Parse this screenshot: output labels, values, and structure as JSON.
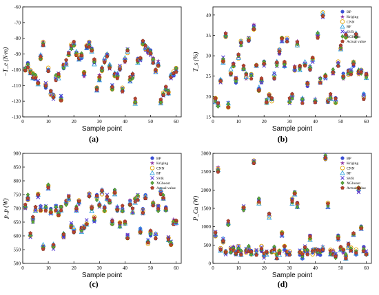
{
  "markers": [
    {
      "name": "BP",
      "shape": "circle",
      "color": "#3b4fd4"
    },
    {
      "name": "Kriging",
      "shape": "star",
      "color": "#8b2fa0"
    },
    {
      "name": "CNN",
      "shape": "circle-open",
      "color": "#e0a100"
    },
    {
      "name": "RF",
      "shape": "triangle-open",
      "color": "#3ba7e0"
    },
    {
      "name": "SVR",
      "shape": "x",
      "color": "#5a3fd6"
    },
    {
      "name": "XGboost",
      "shape": "diamond",
      "color": "#5aa63a"
    },
    {
      "name": "Actual value",
      "shape": "pentagon",
      "color": "#b5432f"
    }
  ],
  "chart_data": [
    {
      "type": "scatter",
      "panel": "(a)",
      "xlabel": "Sample point",
      "ylabel": "−T_e (N·m)",
      "xlim": [
        0,
        62
      ],
      "ylim": [
        -130,
        -60
      ],
      "xticks": [
        0,
        10,
        20,
        30,
        40,
        50,
        60
      ],
      "yticks": [
        -130,
        -120,
        -110,
        -100,
        -90,
        -80,
        -70,
        -60
      ],
      "legend": "none",
      "x": [
        1,
        2,
        3,
        4,
        5,
        6,
        7,
        8,
        9,
        10,
        11,
        12,
        13,
        14,
        15,
        16,
        17,
        18,
        19,
        20,
        21,
        22,
        23,
        24,
        25,
        26,
        27,
        28,
        29,
        30,
        31,
        32,
        33,
        34,
        35,
        36,
        37,
        38,
        39,
        40,
        41,
        42,
        43,
        44,
        45,
        46,
        47,
        48,
        49,
        50,
        51,
        52,
        53,
        54,
        55,
        56,
        57,
        58,
        59,
        60
      ],
      "values": [
        -99,
        -97,
        -101,
        -104,
        -105,
        -108,
        -92,
        -83,
        -110,
        -100,
        -115,
        -117,
        -105,
        -104,
        -118,
        -98,
        -95,
        -89,
        -85,
        -83,
        -90,
        -92,
        -91,
        -103,
        -86,
        -84,
        -88,
        -95,
        -112,
        -105,
        -100,
        -94,
        -90,
        -98,
        -111,
        -103,
        -104,
        -99,
        -113,
        -94,
        -88,
        -106,
        -104,
        -120,
        -94,
        -93,
        -82,
        -86,
        -88,
        -89,
        -94,
        -100,
        -96,
        -120,
        -116,
        -112,
        -114,
        -104,
        -102,
        -100
      ],
      "series_names": [
        "BP",
        "Kriging",
        "CNN",
        "RF",
        "SVR",
        "XGboost",
        "Actual value"
      ]
    },
    {
      "type": "scatter",
      "panel": "(b)",
      "xlabel": "Sample point",
      "ylabel": "T_s (%)",
      "xlim": [
        0,
        62
      ],
      "ylim": [
        15,
        42
      ],
      "xticks": [
        0,
        10,
        20,
        30,
        40,
        50,
        60
      ],
      "yticks": [
        15,
        20,
        25,
        30,
        35,
        40
      ],
      "legend": "top-right",
      "x": [
        1,
        2,
        3,
        4,
        5,
        6,
        7,
        8,
        9,
        10,
        11,
        12,
        13,
        14,
        15,
        16,
        17,
        18,
        19,
        20,
        21,
        22,
        23,
        24,
        25,
        26,
        27,
        28,
        29,
        30,
        31,
        32,
        33,
        34,
        35,
        36,
        37,
        38,
        39,
        40,
        41,
        42,
        43,
        44,
        45,
        46,
        47,
        48,
        49,
        50,
        51,
        52,
        53,
        54,
        55,
        56,
        57,
        58,
        59,
        60
      ],
      "values": [
        19,
        18,
        24,
        29,
        35,
        18,
        26,
        28,
        24,
        30,
        33,
        27,
        25,
        34,
        25,
        37,
        28,
        22,
        24,
        28,
        19,
        20,
        19,
        25,
        28,
        31,
        34,
        28,
        34,
        19,
        20,
        27,
        33,
        27,
        19,
        28,
        23,
        27,
        29,
        19,
        35,
        24,
        40,
        25,
        19,
        20,
        26,
        19,
        28,
        32,
        25,
        35,
        26,
        26,
        28,
        35,
        26,
        26,
        20,
        25
      ],
      "series_names": [
        "BP",
        "Kriging",
        "CNN",
        "RF",
        "SVR",
        "XGboost",
        "Actual value"
      ]
    },
    {
      "type": "scatter",
      "panel": "(c)",
      "xlabel": "Sample point",
      "ylabel": "p_p (W)",
      "xlim": [
        0,
        62
      ],
      "ylim": [
        500,
        900
      ],
      "xticks": [
        0,
        10,
        20,
        30,
        40,
        50,
        60
      ],
      "yticks": [
        500,
        550,
        600,
        650,
        700,
        750,
        800,
        850,
        900
      ],
      "legend": "top-right",
      "x": [
        1,
        2,
        3,
        4,
        5,
        6,
        7,
        8,
        9,
        10,
        11,
        12,
        13,
        14,
        15,
        16,
        17,
        18,
        19,
        20,
        21,
        22,
        23,
        24,
        25,
        26,
        27,
        28,
        29,
        30,
        31,
        32,
        33,
        34,
        35,
        36,
        37,
        38,
        39,
        40,
        41,
        42,
        43,
        44,
        45,
        46,
        47,
        48,
        49,
        50,
        51,
        52,
        53,
        54,
        55,
        56,
        57,
        58,
        59,
        60
      ],
      "values": [
        710,
        740,
        600,
        660,
        700,
        745,
        700,
        560,
        700,
        780,
        690,
        560,
        700,
        680,
        700,
        600,
        720,
        740,
        640,
        620,
        700,
        720,
        620,
        630,
        650,
        750,
        700,
        660,
        740,
        710,
        760,
        700,
        740,
        720,
        650,
        760,
        700,
        640,
        700,
        650,
        600,
        720,
        690,
        730,
        740,
        620,
        690,
        740,
        580,
        610,
        720,
        600,
        700,
        760,
        740,
        700,
        590,
        570,
        650,
        650
      ],
      "series_names": [
        "BP",
        "Kriging",
        "CNN",
        "RF",
        "SVR",
        "XGboost",
        "Actual value"
      ]
    },
    {
      "type": "scatter",
      "panel": "(d)",
      "xlabel": "Sample point",
      "ylabel": "P_Cu (W)",
      "xlim": [
        0,
        62
      ],
      "ylim": [
        0,
        3000
      ],
      "xticks": [
        0,
        10,
        20,
        30,
        40,
        50,
        60
      ],
      "yticks": [
        0,
        500,
        1000,
        1500,
        2000,
        2500,
        3000
      ],
      "legend": "top-right",
      "x": [
        1,
        2,
        3,
        4,
        5,
        6,
        7,
        8,
        9,
        10,
        11,
        12,
        13,
        14,
        15,
        16,
        17,
        18,
        19,
        20,
        21,
        22,
        23,
        24,
        25,
        26,
        27,
        28,
        29,
        30,
        31,
        32,
        33,
        34,
        35,
        36,
        37,
        38,
        39,
        40,
        41,
        42,
        43,
        44,
        45,
        46,
        47,
        48,
        49,
        50,
        51,
        52,
        53,
        54,
        55,
        56,
        57,
        58,
        59,
        60
      ],
      "values": [
        800,
        2550,
        400,
        600,
        300,
        1100,
        350,
        400,
        300,
        400,
        300,
        1500,
        350,
        400,
        300,
        2800,
        300,
        1700,
        400,
        200,
        300,
        1300,
        300,
        400,
        200,
        300,
        800,
        400,
        300,
        300,
        1700,
        1900,
        1600,
        300,
        200,
        400,
        300,
        700,
        300,
        400,
        300,
        300,
        400,
        2900,
        1600,
        300,
        300,
        200,
        700,
        400,
        300,
        200,
        500,
        400,
        800,
        300,
        2000,
        1000,
        400,
        300
      ],
      "series_names": [
        "BP",
        "Kriging",
        "CNN",
        "RF",
        "SVR",
        "XGboost",
        "Actual value"
      ]
    }
  ]
}
